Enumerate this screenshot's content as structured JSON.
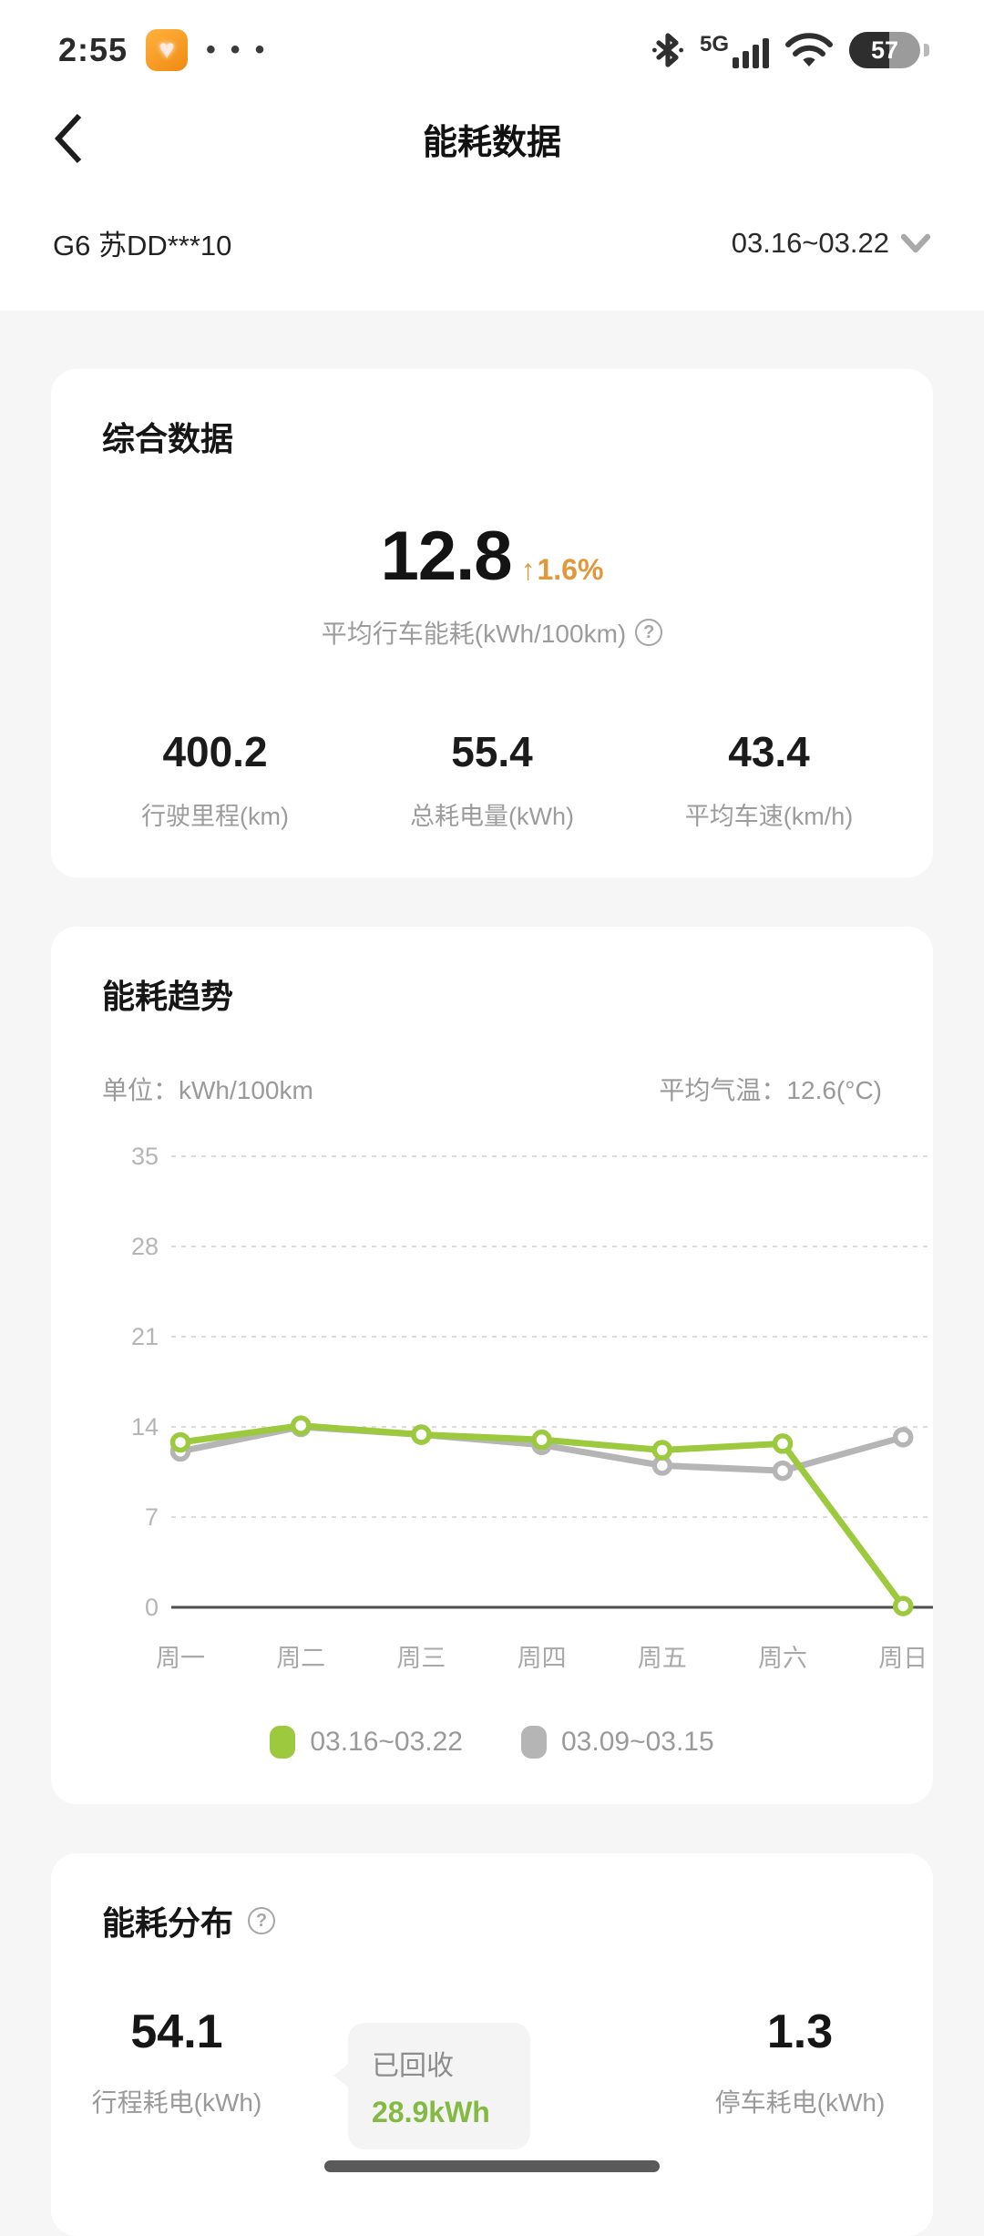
{
  "status_bar": {
    "time": "2:55",
    "app_icon_glyph": "♥",
    "more_dots": "• • •",
    "network_label": "5G",
    "battery_percent": "57"
  },
  "header": {
    "title": "能耗数据"
  },
  "selector": {
    "vehicle": "G6 苏DD***10",
    "date_range": "03.16~03.22"
  },
  "overview": {
    "title": "综合数据",
    "main_value": "12.8",
    "delta_arrow": "↑",
    "delta": "1.6%",
    "main_label": "平均行车能耗(kWh/100km)",
    "question_glyph": "?",
    "stats": [
      {
        "value": "400.2",
        "label": "行驶里程(km)"
      },
      {
        "value": "55.4",
        "label": "总耗电量(kWh)"
      },
      {
        "value": "43.4",
        "label": "平均车速(km/h)"
      }
    ]
  },
  "trend": {
    "title": "能耗趋势",
    "unit_label": "单位：kWh/100km",
    "temp_label": "平均气温：12.6(°C)"
  },
  "chart_data": {
    "type": "line",
    "categories": [
      "周一",
      "周二",
      "周三",
      "周四",
      "周五",
      "周六",
      "周日"
    ],
    "series": [
      {
        "name": "03.16~03.22",
        "color": "#9cc93e",
        "values": [
          12.8,
          14.1,
          13.4,
          13.0,
          12.2,
          12.7,
          0.1
        ]
      },
      {
        "name": "03.09~03.15",
        "color": "#b5b5b5",
        "values": [
          12.1,
          14.0,
          13.4,
          12.6,
          11.0,
          10.6,
          13.2
        ]
      }
    ],
    "yticks": [
      0,
      7,
      14,
      21,
      28,
      35
    ],
    "ylim": [
      0,
      35
    ],
    "unit": "kWh/100km",
    "grid": "horizontal dashed",
    "legend_position": "bottom"
  },
  "distribution": {
    "title": "能耗分布",
    "question_glyph": "?",
    "left": {
      "value": "54.1",
      "label": "行程耗电(kWh)"
    },
    "right": {
      "value": "1.3",
      "label": "停车耗电(kWh)"
    },
    "bubble": {
      "line1": "已回收",
      "line2": "28.9kWh"
    }
  },
  "colors": {
    "accent_orange": "#e2973b",
    "accent_green": "#9cc93e",
    "gray_series": "#b5b5b5",
    "green_text": "#84b944",
    "grid_line": "#dcdcdc",
    "axis_line": "#4f4f4f"
  }
}
